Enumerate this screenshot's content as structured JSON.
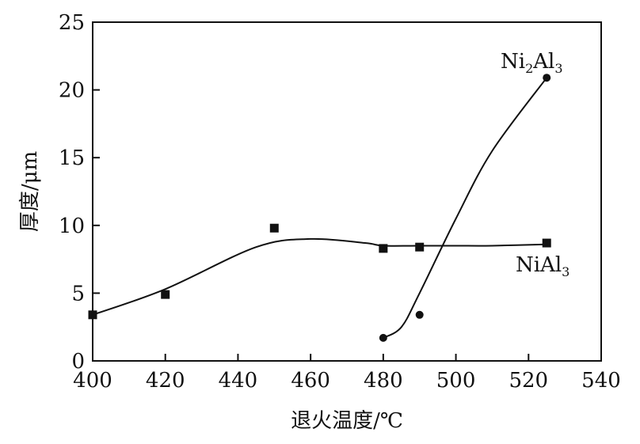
{
  "chart_data": {
    "type": "scatter",
    "xlabel": "退火温度/℃",
    "ylabel": "厚度/μm",
    "xlim": [
      400,
      540
    ],
    "ylim": [
      0,
      25
    ],
    "x_ticks": [
      "400",
      "420",
      "440",
      "460",
      "480",
      "500",
      "520",
      "540"
    ],
    "y_ticks": [
      "0",
      "5",
      "10",
      "15",
      "20",
      "25"
    ],
    "grid": false,
    "series": [
      {
        "name": "NiAl₃",
        "label_parts": {
          "a": "NiAl",
          "b": "3",
          "c": ""
        },
        "marker": "square",
        "x": [
          400,
          420,
          450,
          480,
          490,
          525
        ],
        "y": [
          3.4,
          4.9,
          9.8,
          8.3,
          8.4,
          8.7
        ],
        "curve_x": [
          400,
          420,
          445,
          460,
          475,
          480,
          490,
          500,
          510,
          525
        ],
        "curve_y": [
          3.4,
          5.3,
          8.4,
          9.0,
          8.7,
          8.5,
          8.5,
          8.5,
          8.5,
          8.6
        ]
      },
      {
        "name": "Ni₂Al₃",
        "label_parts": {
          "a": "Ni",
          "b": "2",
          "c": "Al",
          "d": "3"
        },
        "marker": "circle",
        "x": [
          480,
          490,
          525
        ],
        "y": [
          1.7,
          3.4,
          20.9
        ],
        "curve_x": [
          480,
          485,
          490,
          500,
          510,
          525
        ],
        "curve_y": [
          1.7,
          2.5,
          5.0,
          10.5,
          15.5,
          20.9
        ]
      }
    ]
  }
}
